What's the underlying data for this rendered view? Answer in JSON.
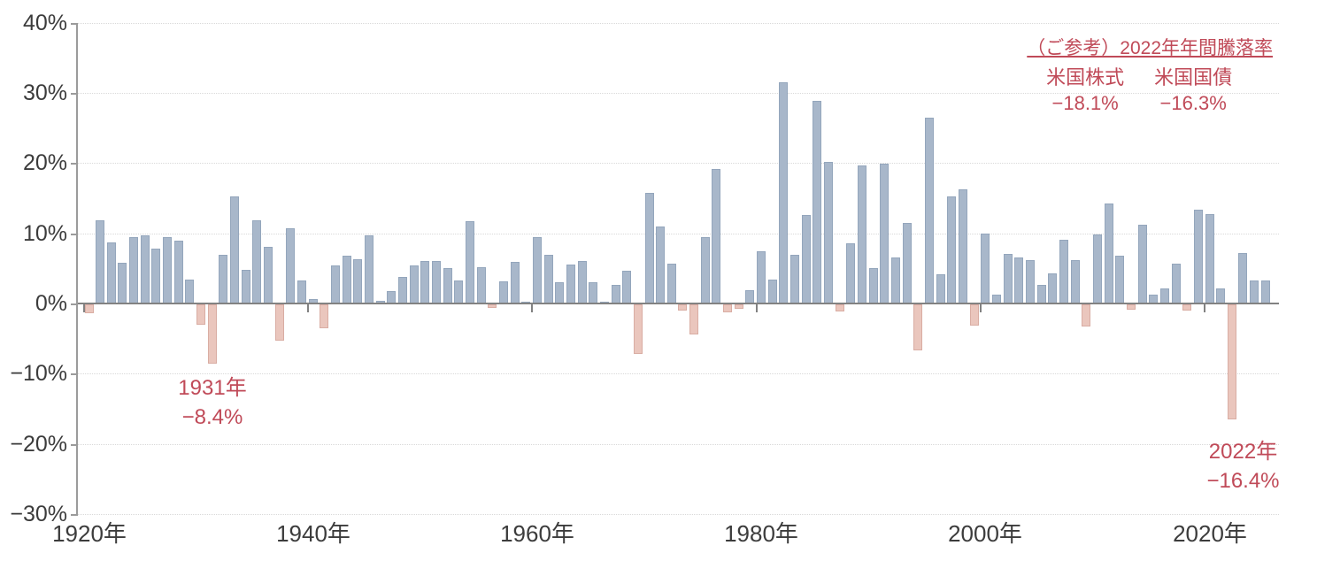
{
  "chart_data": {
    "type": "bar",
    "title": "",
    "xlabel": "",
    "ylabel": "",
    "ylim": [
      -30,
      40
    ],
    "grid": true,
    "years": [
      1920,
      1921,
      1922,
      1923,
      1924,
      1925,
      1926,
      1927,
      1928,
      1929,
      1930,
      1931,
      1932,
      1933,
      1934,
      1935,
      1936,
      1937,
      1938,
      1939,
      1940,
      1941,
      1942,
      1943,
      1944,
      1945,
      1946,
      1947,
      1948,
      1949,
      1950,
      1951,
      1952,
      1953,
      1954,
      1955,
      1956,
      1957,
      1958,
      1959,
      1960,
      1961,
      1962,
      1963,
      1964,
      1965,
      1966,
      1967,
      1968,
      1969,
      1970,
      1971,
      1972,
      1973,
      1974,
      1975,
      1976,
      1977,
      1978,
      1979,
      1980,
      1981,
      1982,
      1983,
      1984,
      1985,
      1986,
      1987,
      1988,
      1989,
      1990,
      1991,
      1992,
      1993,
      1994,
      1995,
      1996,
      1997,
      1998,
      1999,
      2000,
      2001,
      2002,
      2003,
      2004,
      2005,
      2006,
      2007,
      2008,
      2009,
      2010,
      2011,
      2012,
      2013,
      2014,
      2015,
      2016,
      2017,
      2018,
      2019,
      2020,
      2021,
      2022,
      2023,
      2024,
      2025
    ],
    "values": [
      -1.3,
      11.9,
      8.7,
      5.8,
      9.4,
      9.7,
      7.8,
      9.5,
      9.0,
      3.4,
      -2.9,
      -8.4,
      6.9,
      15.3,
      4.8,
      11.9,
      8.1,
      -5.2,
      10.7,
      3.3,
      0.6,
      -3.4,
      5.4,
      6.8,
      6.3,
      9.7,
      0.4,
      1.8,
      3.8,
      5.4,
      6.0,
      6.0,
      5.0,
      3.3,
      11.7,
      5.2,
      -0.5,
      3.2,
      5.9,
      0.3,
      9.5,
      6.9,
      3.0,
      5.6,
      6.1,
      3.0,
      0.3,
      2.7,
      4.7,
      -7.0,
      15.7,
      11.0,
      5.7,
      -0.9,
      -4.3,
      9.5,
      19.2,
      -1.1,
      -0.6,
      1.9,
      7.4,
      3.4,
      31.5,
      6.9,
      12.6,
      28.9,
      20.2,
      -1.0,
      8.6,
      19.7,
      5.0,
      19.9,
      6.6,
      11.5,
      -6.5,
      26.5,
      4.2,
      15.3,
      16.3,
      -3.0,
      10.0,
      1.3,
      7.0,
      6.5,
      6.2,
      2.7,
      4.3,
      9.1,
      6.2,
      -3.2,
      9.8,
      14.2,
      6.8,
      -0.8,
      11.2,
      1.2,
      2.2,
      5.7,
      -0.9,
      13.4,
      12.7,
      2.2,
      -16.4,
      7.2,
      3.3,
      3.3
    ],
    "y_ticks": [
      {
        "value": 40,
        "label": "40%"
      },
      {
        "value": 30,
        "label": "30%"
      },
      {
        "value": 20,
        "label": "20%"
      },
      {
        "value": 10,
        "label": "10%"
      },
      {
        "value": 0,
        "label": "0%"
      },
      {
        "value": -10,
        "label": "−10%"
      },
      {
        "value": -20,
        "label": "−20%"
      },
      {
        "value": -30,
        "label": "−30%"
      }
    ],
    "x_ticks": [
      {
        "year": 1920,
        "label": "1920年"
      },
      {
        "year": 1940,
        "label": "1940年"
      },
      {
        "year": 1960,
        "label": "1960年"
      },
      {
        "year": 1980,
        "label": "1980年"
      },
      {
        "year": 2000,
        "label": "2000年"
      },
      {
        "year": 2020,
        "label": "2020年"
      }
    ],
    "colors": {
      "positive_bar": "#a8b7ca",
      "negative_bar": "#eac6bd",
      "annotation_text": "#c04a58",
      "axis_text": "#3c3c3c",
      "zero_line": "#828282",
      "gridline": "#d9d9d9"
    }
  },
  "annotations": [
    {
      "year": 1931,
      "lines": [
        "1931年",
        "−8.4%"
      ]
    },
    {
      "year": 2022,
      "lines": [
        "2022年",
        "−16.4%"
      ]
    }
  ],
  "reference": {
    "title": "（ご参考）2022年年間騰落率",
    "items": [
      {
        "label": "米国株式",
        "value": "−18.1%"
      },
      {
        "label": "米国国債",
        "value": "−16.3%"
      }
    ]
  }
}
